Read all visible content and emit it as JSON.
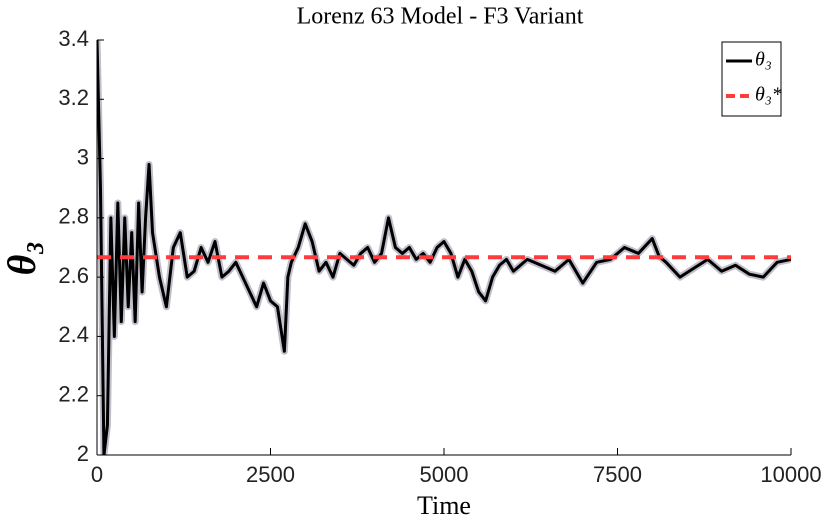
{
  "chart_data": {
    "type": "line",
    "title": "Lorenz 63 Model - F3 Variant",
    "x_label": "Time",
    "y_label": "θ₃",
    "xlim": [
      0,
      10000
    ],
    "xticks": [
      0,
      2500,
      5000,
      7500,
      10000
    ],
    "ylim": [
      2,
      3.4
    ],
    "yticks": [
      2,
      2.2,
      2.4,
      2.6,
      2.8,
      3,
      3.2,
      3.4
    ],
    "legend": "upper right",
    "series": [
      {
        "name": "θ₃",
        "color": "#000000",
        "dash": false,
        "x": [
          0,
          50,
          100,
          150,
          200,
          250,
          300,
          350,
          400,
          450,
          500,
          550,
          600,
          650,
          700,
          750,
          800,
          900,
          1000,
          1100,
          1200,
          1300,
          1400,
          1500,
          1600,
          1700,
          1800,
          1900,
          2000,
          2100,
          2200,
          2300,
          2400,
          2500,
          2600,
          2700,
          2750,
          2800,
          2900,
          3000,
          3100,
          3200,
          3300,
          3400,
          3500,
          3600,
          3700,
          3800,
          3900,
          4000,
          4100,
          4200,
          4300,
          4400,
          4500,
          4600,
          4700,
          4800,
          4900,
          5000,
          5100,
          5200,
          5300,
          5400,
          5500,
          5600,
          5700,
          5800,
          5900,
          6000,
          6200,
          6400,
          6600,
          6800,
          7000,
          7200,
          7400,
          7600,
          7800,
          8000,
          8100,
          8200,
          8400,
          8600,
          8800,
          9000,
          9200,
          9400,
          9600,
          9800,
          10000
        ],
        "values": [
          3.4,
          2.9,
          2.0,
          2.1,
          2.8,
          2.4,
          2.85,
          2.45,
          2.8,
          2.5,
          2.75,
          2.45,
          2.85,
          2.55,
          2.8,
          2.98,
          2.75,
          2.6,
          2.5,
          2.7,
          2.75,
          2.6,
          2.62,
          2.7,
          2.65,
          2.72,
          2.6,
          2.62,
          2.65,
          2.6,
          2.55,
          2.5,
          2.58,
          2.52,
          2.5,
          2.35,
          2.6,
          2.65,
          2.7,
          2.78,
          2.72,
          2.62,
          2.65,
          2.6,
          2.68,
          2.66,
          2.64,
          2.68,
          2.7,
          2.65,
          2.68,
          2.8,
          2.7,
          2.68,
          2.7,
          2.66,
          2.68,
          2.65,
          2.7,
          2.72,
          2.68,
          2.6,
          2.66,
          2.62,
          2.55,
          2.52,
          2.6,
          2.64,
          2.66,
          2.62,
          2.66,
          2.64,
          2.62,
          2.66,
          2.58,
          2.65,
          2.66,
          2.7,
          2.68,
          2.73,
          2.67,
          2.65,
          2.6,
          2.63,
          2.66,
          2.62,
          2.64,
          2.61,
          2.6,
          2.65,
          2.66
        ]
      },
      {
        "name": "θ₃*",
        "color": "#ff3b3b",
        "dash": true,
        "x": [
          0,
          10000
        ],
        "values": [
          2.667,
          2.667
        ]
      }
    ]
  }
}
